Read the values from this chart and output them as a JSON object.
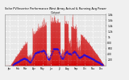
{
  "title": "Solar PV/Inverter Performance West Array Actual & Running Avg Power Output",
  "title_fontsize": 2.8,
  "bg_color": "#f0f0f0",
  "plot_bg": "#e8e8e8",
  "grid_color": "#ffffff",
  "area_color": "#dd0000",
  "dot_color": "#0000ff",
  "line_color": "#cc0000",
  "ylim": [
    0,
    1800
  ],
  "xlim": [
    0,
    365
  ],
  "ytick_vals": [
    200,
    400,
    600,
    800,
    1000,
    1200,
    1400,
    1600,
    1800
  ],
  "ytick_labels": [
    "200",
    "400",
    "600",
    "800",
    "1k",
    "1.2k",
    "1.4k",
    "1.6k",
    "1.8k"
  ],
  "n_days": 365,
  "samples_per_day": 12
}
